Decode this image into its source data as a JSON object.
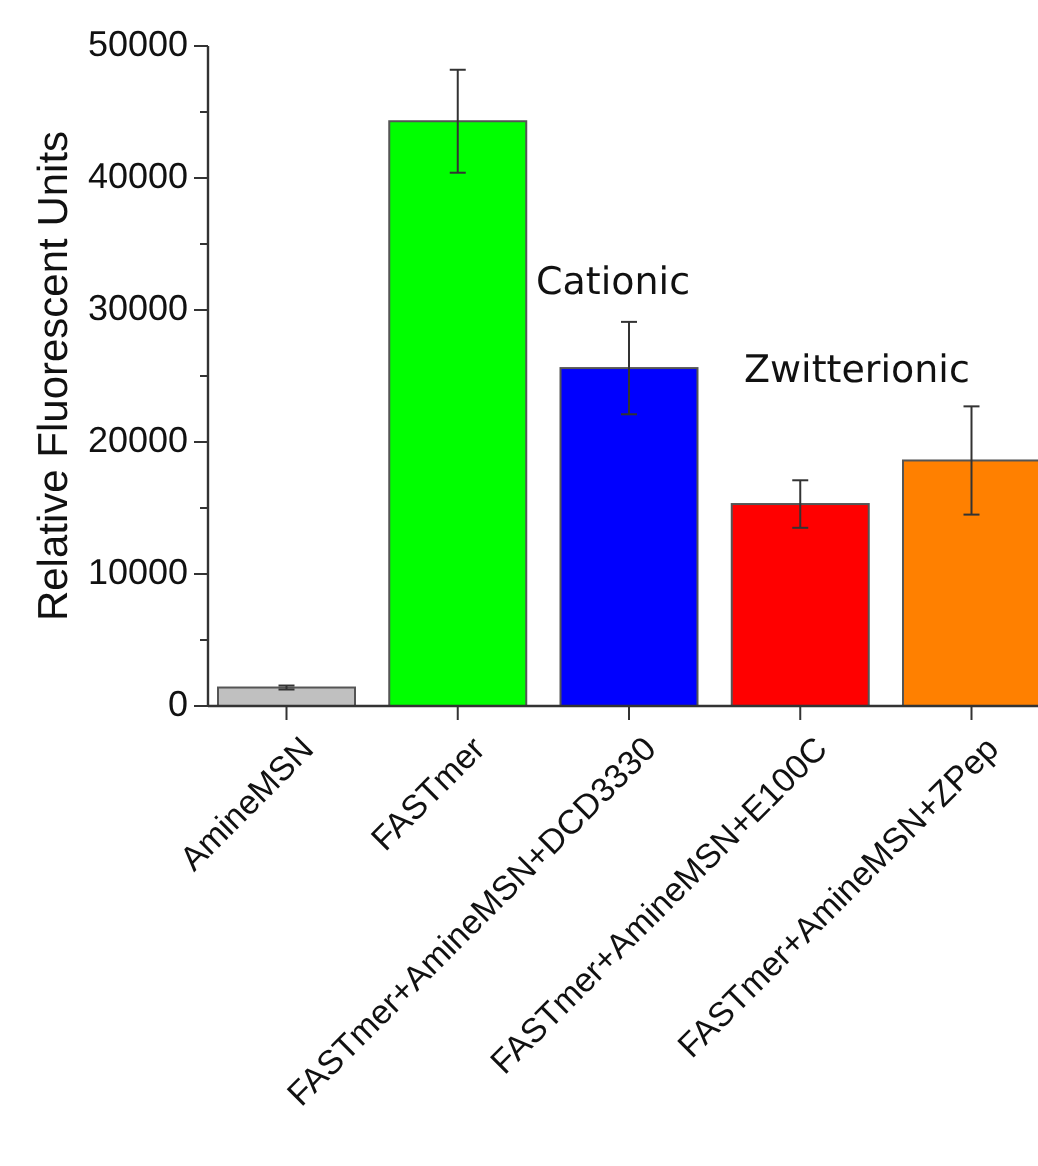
{
  "chart_data": {
    "type": "bar",
    "ylabel": "Relative Fluorescent Units",
    "categories": [
      "AmineMSN",
      "FASTmer",
      "FASTmer+AmineMSN+DCD3330",
      "FASTmer+AmineMSN+E100C",
      "FASTmer+AmineMSN+ZPep"
    ],
    "values": [
      1400,
      44300,
      25600,
      15300,
      18600
    ],
    "errors": [
      150,
      3900,
      3500,
      1800,
      4100
    ],
    "colors": [
      "#c0c0c0",
      "#00ff00",
      "#0000ff",
      "#ff0000",
      "#ff8000"
    ],
    "ylim": [
      0,
      50000
    ],
    "yticks": [
      0,
      {
        "value": 5000,
        "label": null
      },
      10000,
      {
        "value": 15000,
        "label": null
      },
      20000,
      {
        "value": 25000,
        "label": null
      },
      30000,
      {
        "value": 35000,
        "label": null
      },
      40000,
      {
        "value": 45000,
        "label": null
      },
      50000
    ],
    "annotations": [
      "Cationic",
      "Zwitterionic"
    ],
    "grid": false
  }
}
